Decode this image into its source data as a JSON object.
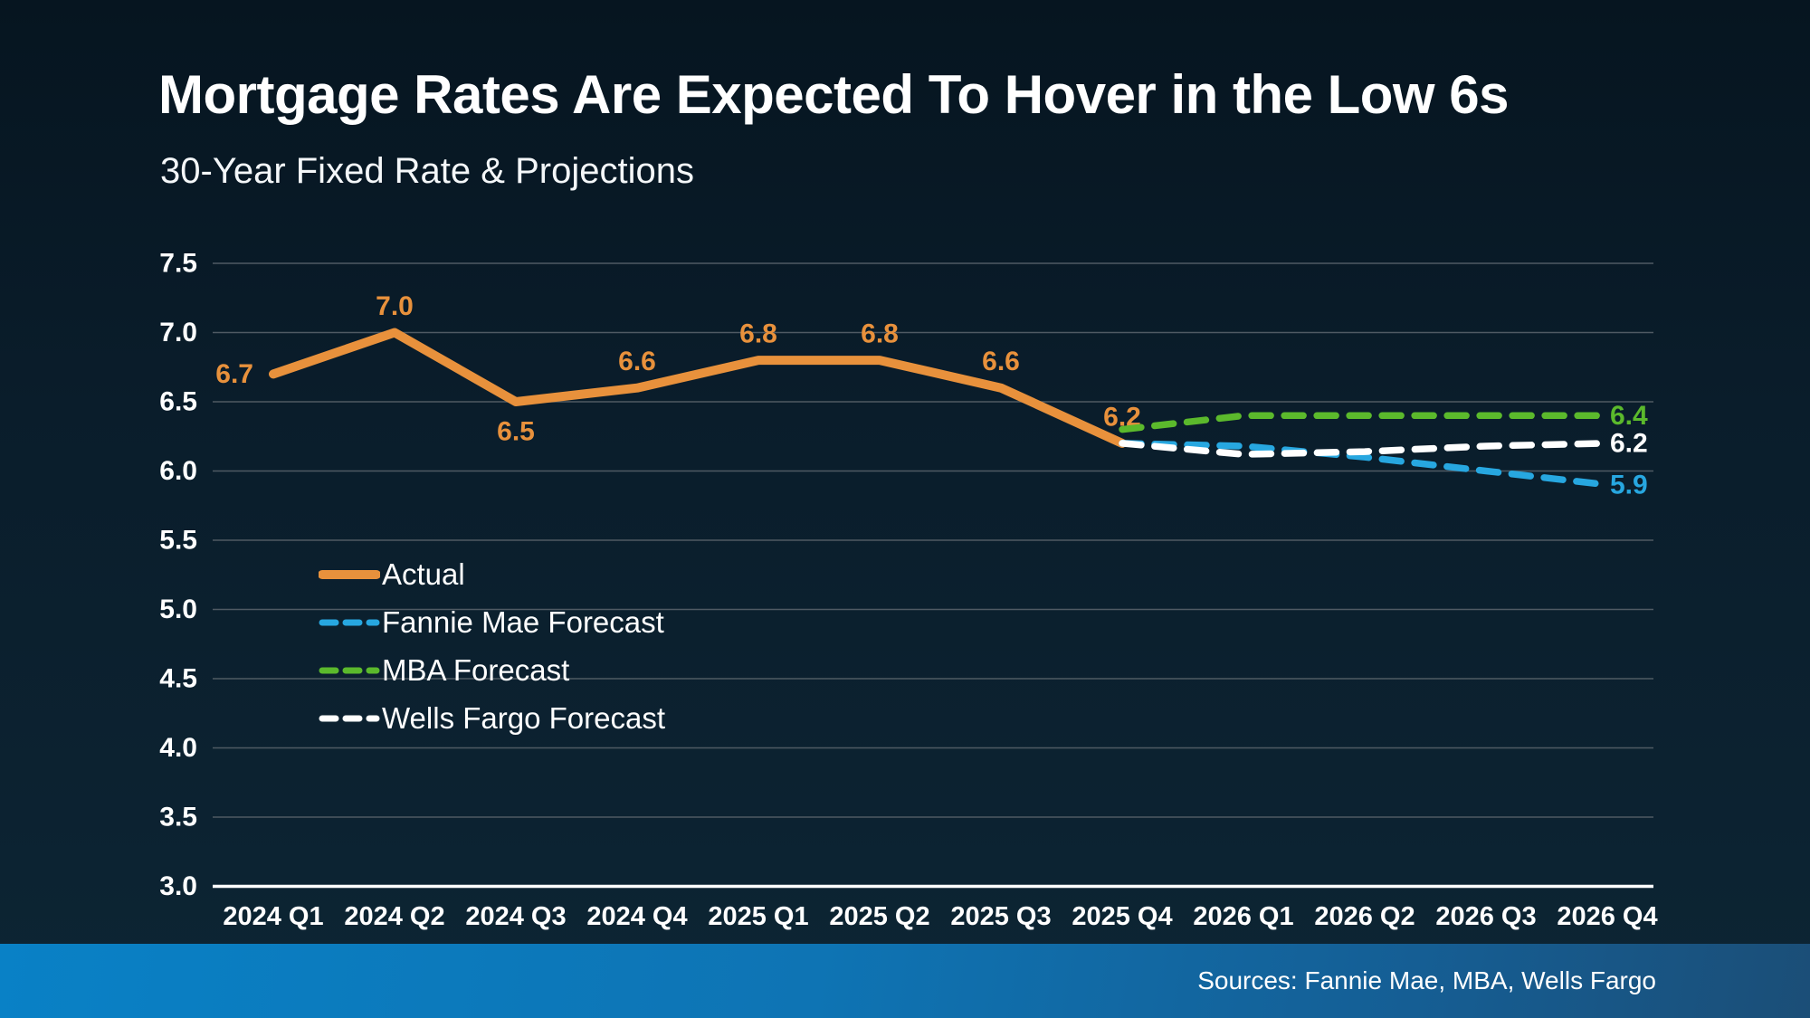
{
  "page": {
    "title": "Mortgage Rates Are Expected To Hover in the Low 6s",
    "subtitle": "30-Year Fixed Rate & Projections",
    "source_note": "Sources: Fannie Mae, MBA, Wells Fargo"
  },
  "colors": {
    "background_top": "#061520",
    "background_bottom": "#0d2534",
    "gridline": "#4f5a63",
    "axis_line": "#ffffff",
    "axis_text": "#ffffff",
    "actual_orange": "#e8913c",
    "fannie_blue": "#27a7e0",
    "mba_green": "#5bb92c",
    "wells_white": "#ffffff",
    "footer_bar_left": "#0981c6",
    "footer_bar_right": "#1b4e77"
  },
  "chart_data": {
    "type": "line",
    "title": "30-Year Fixed Rate & Projections",
    "xlabel": "",
    "ylabel": "",
    "grid": true,
    "legend_position": "inside-left-middle",
    "ylim": [
      3.0,
      7.5
    ],
    "ytick_step": 0.5,
    "yticks": [
      "7.5",
      "7.0",
      "6.5",
      "6.0",
      "5.5",
      "5.0",
      "4.5",
      "4.0",
      "3.5",
      "3.0"
    ],
    "categories": [
      "2024 Q1",
      "2024 Q2",
      "2024 Q3",
      "2024 Q4",
      "2025 Q1",
      "2025 Q2",
      "2025 Q3",
      "2025 Q4",
      "2026 Q1",
      "2026 Q2",
      "2026 Q3",
      "2026 Q4"
    ],
    "series": [
      {
        "name": "Actual",
        "color": "#e8913c",
        "style": "solid",
        "start_index": 0,
        "values": [
          6.7,
          7.0,
          6.5,
          6.6,
          6.8,
          6.8,
          6.6,
          6.2
        ],
        "point_labels": [
          "6.7",
          "7.0",
          "6.5",
          "6.6",
          "6.8",
          "6.8",
          "6.6",
          "6.2"
        ],
        "label_pos": [
          "left",
          "above",
          "below",
          "above",
          "above",
          "above",
          "above",
          "above"
        ]
      },
      {
        "name": "Fannie Mae Forecast",
        "color": "#27a7e0",
        "style": "dashed",
        "start_index": 7,
        "values": [
          6.2,
          6.18,
          6.1,
          6.0,
          5.9
        ],
        "end_label": "5.9"
      },
      {
        "name": "MBA Forecast",
        "color": "#5bb92c",
        "style": "dashed",
        "start_index": 7,
        "values": [
          6.3,
          6.4,
          6.4,
          6.4,
          6.4
        ],
        "end_label": "6.4"
      },
      {
        "name": "Wells Fargo Forecast",
        "color": "#ffffff",
        "style": "dashed",
        "start_index": 7,
        "values": [
          6.2,
          6.12,
          6.14,
          6.18,
          6.2
        ],
        "end_label": "6.2"
      }
    ]
  }
}
